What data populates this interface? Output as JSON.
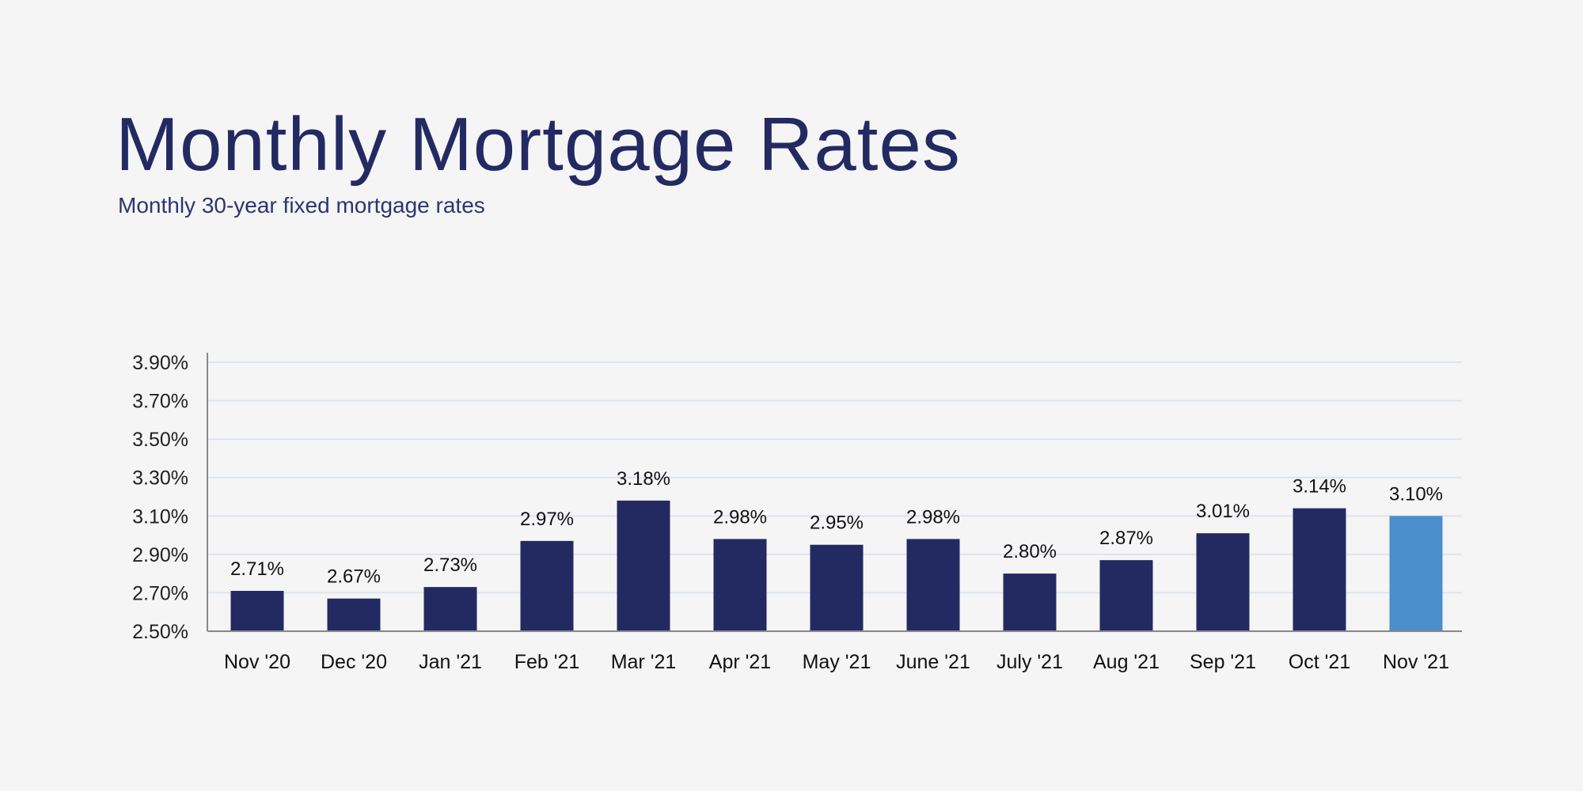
{
  "chart_data": {
    "type": "bar",
    "title": "Monthly Mortgage Rates",
    "subtitle": "Monthly 30-year fixed mortgage rates",
    "xlabel": "",
    "ylabel": "",
    "categories": [
      "Nov '20",
      "Dec '20",
      "Jan '21",
      "Feb '21",
      "Mar '21",
      "Apr '21",
      "May '21",
      "June '21",
      "July '21",
      "Aug '21",
      "Sep '21",
      "Oct '21",
      "Nov '21"
    ],
    "values": [
      2.71,
      2.67,
      2.73,
      2.97,
      3.18,
      2.98,
      2.95,
      2.98,
      2.8,
      2.87,
      3.01,
      3.14,
      3.1
    ],
    "data_labels": [
      "2.71%",
      "2.67%",
      "2.73%",
      "2.97%",
      "3.18%",
      "2.98%",
      "2.95%",
      "2.98%",
      "2.80%",
      "2.87%",
      "3.01%",
      "3.14%",
      "3.10%"
    ],
    "yticks": [
      2.5,
      2.7,
      2.9,
      3.1,
      3.3,
      3.5,
      3.7,
      3.9
    ],
    "ytick_labels": [
      "2.50%",
      "2.70%",
      "2.90%",
      "3.10%",
      "3.30%",
      "3.50%",
      "3.70%",
      "3.90%"
    ],
    "ylim": [
      2.5,
      3.9
    ],
    "grid": true,
    "colors": {
      "bar": "#232a62",
      "highlight": "#4a8fcb",
      "grid": "#dde4f0",
      "axis": "#888888"
    },
    "highlight_index": 12
  }
}
